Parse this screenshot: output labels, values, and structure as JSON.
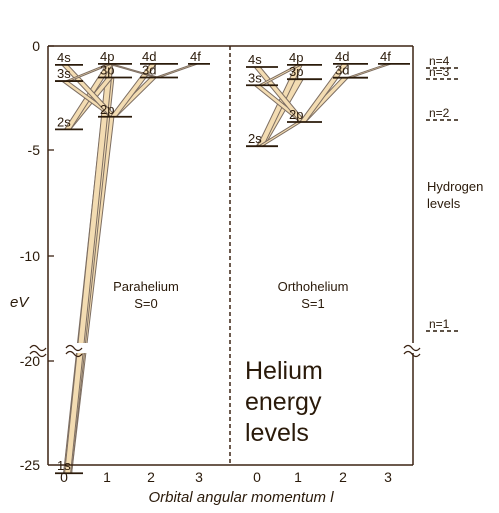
{
  "yaxis": {
    "label": "eV",
    "ticks": [
      {
        "value": 0,
        "label": "0"
      },
      {
        "value": -5,
        "label": "-5"
      },
      {
        "value": -10,
        "label": "-10"
      },
      {
        "value": -20,
        "label": "-20"
      },
      {
        "value": -25,
        "label": "-25"
      }
    ]
  },
  "xaxis": {
    "label": "Orbital angular momentum l",
    "para_ticks": [
      "0",
      "1",
      "2",
      "3"
    ],
    "ortho_ticks": [
      "0",
      "1",
      "2",
      "3"
    ]
  },
  "panels": {
    "parahelium": {
      "name": "Parahelium",
      "spin": "S=0"
    },
    "orthohelium": {
      "name": "Orthohelium",
      "spin": "S=1"
    }
  },
  "para_levels": [
    {
      "label": "1s",
      "l": 0,
      "energy_eV": -24.6
    },
    {
      "label": "2s",
      "l": 0,
      "energy_eV": -3.97
    },
    {
      "label": "3s",
      "l": 0,
      "energy_eV": -1.67
    },
    {
      "label": "4s",
      "l": 0,
      "energy_eV": -0.9
    },
    {
      "label": "2p",
      "l": 1,
      "energy_eV": -3.37
    },
    {
      "label": "3p",
      "l": 1,
      "energy_eV": -1.5
    },
    {
      "label": "4p",
      "l": 1,
      "energy_eV": -0.85
    },
    {
      "label": "3d",
      "l": 2,
      "energy_eV": -1.5
    },
    {
      "label": "4d",
      "l": 2,
      "energy_eV": -0.85
    },
    {
      "label": "4f",
      "l": 3,
      "energy_eV": -0.85
    }
  ],
  "ortho_levels": [
    {
      "label": "2s",
      "l": 0,
      "energy_eV": -4.77
    },
    {
      "label": "3s",
      "l": 0,
      "energy_eV": -1.87
    },
    {
      "label": "4s",
      "l": 0,
      "energy_eV": -1.0
    },
    {
      "label": "2p",
      "l": 1,
      "energy_eV": -3.62
    },
    {
      "label": "3p",
      "l": 1,
      "energy_eV": -1.58
    },
    {
      "label": "4p",
      "l": 1,
      "energy_eV": -0.9
    },
    {
      "label": "3d",
      "l": 2,
      "energy_eV": -1.51
    },
    {
      "label": "4d",
      "l": 2,
      "energy_eV": -0.85
    },
    {
      "label": "4f",
      "l": 3,
      "energy_eV": -0.85
    }
  ],
  "hydrogen": {
    "title_line1": "Hydrogen",
    "title_line2": "levels",
    "levels": [
      {
        "label": "n=4",
        "energy_eV": -0.85
      },
      {
        "label": "n=3",
        "energy_eV": -1.51
      },
      {
        "label": "n=2",
        "energy_eV": -3.4
      },
      {
        "label": "n=1",
        "energy_eV": -13.6
      }
    ]
  },
  "title": {
    "line1": "Helium",
    "line2": "energy",
    "line3": "levels"
  },
  "colors": {
    "frame": "#3b2313",
    "level": "#2a1a0a",
    "transition_fill": "#f3dcb2",
    "transition_edge": "#7d6e62"
  }
}
